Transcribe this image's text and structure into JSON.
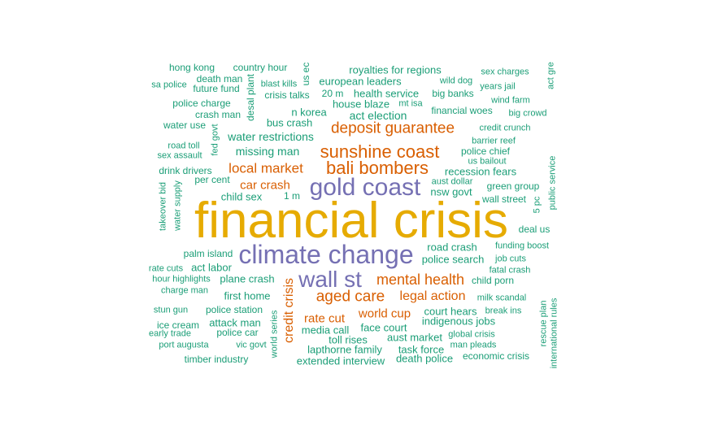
{
  "palette": {
    "teal": "#1b9e77",
    "orange": "#d95f02",
    "purple": "#7570b3",
    "gold": "#e6ab02"
  },
  "words": [
    {
      "text": "financial crisis",
      "color": "gold"
    },
    {
      "text": "climate change",
      "color": "purple"
    },
    {
      "text": "gold coast",
      "color": "purple"
    },
    {
      "text": "wall st",
      "color": "purple"
    },
    {
      "text": "sunshine coast",
      "color": "orange"
    },
    {
      "text": "bali bombers",
      "color": "orange"
    },
    {
      "text": "deposit guarantee",
      "color": "orange"
    },
    {
      "text": "aged care",
      "color": "orange"
    },
    {
      "text": "mental health",
      "color": "orange"
    },
    {
      "text": "local market",
      "color": "orange"
    },
    {
      "text": "credit crisis",
      "color": "orange"
    },
    {
      "text": "legal action",
      "color": "orange"
    },
    {
      "text": "car crash",
      "color": "orange"
    },
    {
      "text": "rate cut",
      "color": "orange"
    },
    {
      "text": "world cup",
      "color": "orange"
    },
    {
      "text": "hong kong",
      "color": "teal"
    },
    {
      "text": "country hour",
      "color": "teal"
    },
    {
      "text": "us ec",
      "color": "teal"
    },
    {
      "text": "royalties for regions",
      "color": "teal"
    },
    {
      "text": "sex charges",
      "color": "teal"
    },
    {
      "text": "act gre",
      "color": "teal"
    },
    {
      "text": "death man",
      "color": "teal"
    },
    {
      "text": "blast kills",
      "color": "teal"
    },
    {
      "text": "sa police",
      "color": "teal"
    },
    {
      "text": "future fund",
      "color": "teal"
    },
    {
      "text": "desal plant",
      "color": "teal"
    },
    {
      "text": "european leaders",
      "color": "teal"
    },
    {
      "text": "wild dog",
      "color": "teal"
    },
    {
      "text": "years jail",
      "color": "teal"
    },
    {
      "text": "crisis talks",
      "color": "teal"
    },
    {
      "text": "20 m",
      "color": "teal"
    },
    {
      "text": "health service",
      "color": "teal"
    },
    {
      "text": "big banks",
      "color": "teal"
    },
    {
      "text": "wind farm",
      "color": "teal"
    },
    {
      "text": "police charge",
      "color": "teal"
    },
    {
      "text": "house blaze",
      "color": "teal"
    },
    {
      "text": "mt isa",
      "color": "teal"
    },
    {
      "text": "financial woes",
      "color": "teal"
    },
    {
      "text": "big crowd",
      "color": "teal"
    },
    {
      "text": "crash man",
      "color": "teal"
    },
    {
      "text": "n korea",
      "color": "teal"
    },
    {
      "text": "act election",
      "color": "teal"
    },
    {
      "text": "water use",
      "color": "teal"
    },
    {
      "text": "fed govt",
      "color": "teal"
    },
    {
      "text": "bus crash",
      "color": "teal"
    },
    {
      "text": "credit crunch",
      "color": "teal"
    },
    {
      "text": "water restrictions",
      "color": "teal"
    },
    {
      "text": "road toll",
      "color": "teal"
    },
    {
      "text": "barrier reef",
      "color": "teal"
    },
    {
      "text": "missing man",
      "color": "teal"
    },
    {
      "text": "police chief",
      "color": "teal"
    },
    {
      "text": "sex assault",
      "color": "teal"
    },
    {
      "text": "us bailout",
      "color": "teal"
    },
    {
      "text": "public service",
      "color": "teal"
    },
    {
      "text": "drink drivers",
      "color": "teal"
    },
    {
      "text": "recession fears",
      "color": "teal"
    },
    {
      "text": "per cent",
      "color": "teal"
    },
    {
      "text": "aust dollar",
      "color": "teal"
    },
    {
      "text": "takeover bid",
      "color": "teal"
    },
    {
      "text": "water supply",
      "color": "teal"
    },
    {
      "text": "green group",
      "color": "teal"
    },
    {
      "text": "child sex",
      "color": "teal"
    },
    {
      "text": "1 m",
      "color": "teal"
    },
    {
      "text": "nsw govt",
      "color": "teal"
    },
    {
      "text": "wall street",
      "color": "teal"
    },
    {
      "text": "5 pc",
      "color": "teal"
    },
    {
      "text": "deal us",
      "color": "teal"
    },
    {
      "text": "road crash",
      "color": "teal"
    },
    {
      "text": "funding boost",
      "color": "teal"
    },
    {
      "text": "palm island",
      "color": "teal"
    },
    {
      "text": "police search",
      "color": "teal"
    },
    {
      "text": "job cuts",
      "color": "teal"
    },
    {
      "text": "rate cuts",
      "color": "teal"
    },
    {
      "text": "act labor",
      "color": "teal"
    },
    {
      "text": "fatal crash",
      "color": "teal"
    },
    {
      "text": "hour highlights",
      "color": "teal"
    },
    {
      "text": "plane crash",
      "color": "teal"
    },
    {
      "text": "child porn",
      "color": "teal"
    },
    {
      "text": "charge man",
      "color": "teal"
    },
    {
      "text": "first home",
      "color": "teal"
    },
    {
      "text": "milk scandal",
      "color": "teal"
    },
    {
      "text": "rescue plan",
      "color": "teal"
    },
    {
      "text": "international rules",
      "color": "teal"
    },
    {
      "text": "stun gun",
      "color": "teal"
    },
    {
      "text": "police station",
      "color": "teal"
    },
    {
      "text": "court hears",
      "color": "teal"
    },
    {
      "text": "break ins",
      "color": "teal"
    },
    {
      "text": "world series",
      "color": "teal"
    },
    {
      "text": "indigenous jobs",
      "color": "teal"
    },
    {
      "text": "ice cream",
      "color": "teal"
    },
    {
      "text": "attack man",
      "color": "teal"
    },
    {
      "text": "early trade",
      "color": "teal"
    },
    {
      "text": "police car",
      "color": "teal"
    },
    {
      "text": "media call",
      "color": "teal"
    },
    {
      "text": "face court",
      "color": "teal"
    },
    {
      "text": "global crisis",
      "color": "teal"
    },
    {
      "text": "toll rises",
      "color": "teal"
    },
    {
      "text": "aust market",
      "color": "teal"
    },
    {
      "text": "port augusta",
      "color": "teal"
    },
    {
      "text": "vic govt",
      "color": "teal"
    },
    {
      "text": "man pleads",
      "color": "teal"
    },
    {
      "text": "lapthorne family",
      "color": "teal"
    },
    {
      "text": "task force",
      "color": "teal"
    },
    {
      "text": "timber industry",
      "color": "teal"
    },
    {
      "text": "extended interview",
      "color": "teal"
    },
    {
      "text": "death police",
      "color": "teal"
    },
    {
      "text": "economic crisis",
      "color": "teal"
    }
  ]
}
